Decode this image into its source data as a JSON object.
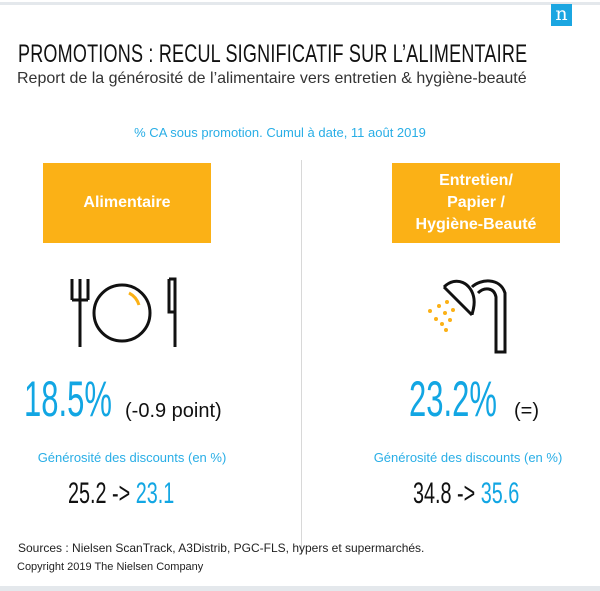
{
  "logo": {
    "letter": "n"
  },
  "header": {
    "title": "PROMOTIONS : RECUL SIGNIFICATIF SUR L’ALIMENTAIRE",
    "subtitle": "Report de la générosité de l’alimentaire vers entretien & hygiène-beauté"
  },
  "note": "% CA sous promotion.  Cumul à date, 11 août 2019",
  "left": {
    "category": "Alimentaire",
    "icon": "plate-cutlery-icon",
    "share": "18.5%",
    "change": "(-0.9 point)",
    "generosity_label": "Générosité des discounts (en %)",
    "from": "25.2",
    "arrow": "->",
    "to": "23.1"
  },
  "right": {
    "category_lines": [
      "Entretien/",
      "Papier /",
      "Hygiène-Beauté"
    ],
    "icon": "shower-icon",
    "share": "23.2%",
    "change": "(=)",
    "generosity_label": "Générosité des discounts (en %)",
    "from": "34.8",
    "arrow": "->",
    "to": "35.6"
  },
  "footer": {
    "sources": "Sources : Nielsen ScanTrack, A3Distrib, PGC-FLS, hypers et supermarchés.",
    "copyright": "Copyright  2019  The Nielsen  Company"
  },
  "colors": {
    "accent_blue": "#12a6e3",
    "orange": "#fbb116",
    "text": "#111111"
  }
}
